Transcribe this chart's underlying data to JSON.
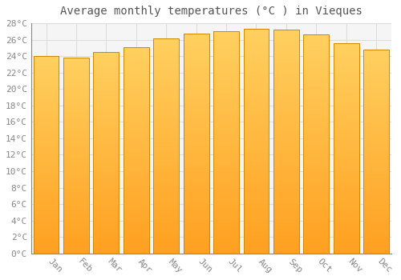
{
  "title": "Average monthly temperatures (°C ) in Vieques",
  "months": [
    "Jan",
    "Feb",
    "Mar",
    "Apr",
    "May",
    "Jun",
    "Jul",
    "Aug",
    "Sep",
    "Oct",
    "Nov",
    "Dec"
  ],
  "temperatures": [
    24.0,
    23.8,
    24.5,
    25.1,
    26.2,
    26.7,
    27.0,
    27.3,
    27.2,
    26.6,
    25.6,
    24.8
  ],
  "bar_color_top": "#FFD060",
  "bar_color_bottom": "#FFA020",
  "bar_edge_color": "#CC8800",
  "ylim": [
    0,
    28
  ],
  "ytick_max": 28,
  "ytick_step": 2,
  "background_color": "#ffffff",
  "plot_bg_color": "#f5f5f5",
  "grid_color": "#dddddd",
  "title_fontsize": 10,
  "tick_fontsize": 8,
  "bar_width": 0.85
}
